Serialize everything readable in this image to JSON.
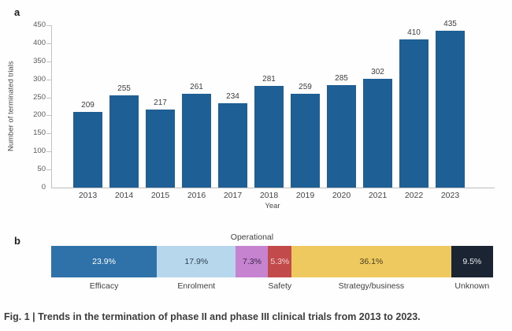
{
  "figure": {
    "caption": "Fig. 1 | Trends in the termination of phase II and phase III clinical trials from 2013 to 2023."
  },
  "panel_a": {
    "label": "a"
  },
  "panel_b": {
    "label": "b"
  },
  "colors": {
    "bar_blue": "#1e6096",
    "axis_gray": "#c2c2c2",
    "label_gray": "#3f3f3f"
  },
  "chart_data": [
    {
      "type": "bar",
      "panel": "a",
      "title": "",
      "xlabel": "Year",
      "ylabel": "Number of terminated trials",
      "categories": [
        "2013",
        "2014",
        "2015",
        "2016",
        "2017",
        "2018",
        "2019",
        "2020",
        "2021",
        "2022",
        "2023"
      ],
      "values": [
        209,
        255,
        217,
        261,
        234,
        281,
        259,
        285,
        302,
        410,
        435
      ],
      "ylim": [
        0,
        450
      ],
      "ytick_interval": 50,
      "grid": false,
      "legend": "none",
      "bar_color": "#1e6096",
      "value_labels": true
    },
    {
      "type": "bar",
      "subtype": "stacked-horizontal-100pct",
      "panel": "b",
      "unit": "%",
      "segments": [
        {
          "label": "Efficacy",
          "value": 23.9,
          "display": "23.9%",
          "color": "#2e72a9",
          "text_color": "#fdfdfd",
          "label_side": "below"
        },
        {
          "label": "Enrolment",
          "value": 17.9,
          "display": "17.9%",
          "color": "#b7d7ec",
          "text_color": "#30414f",
          "label_side": "below"
        },
        {
          "label": "Operational",
          "value": 7.3,
          "display": "7.3%",
          "color": "#c583d0",
          "text_color": "#3f2a49",
          "label_side": "above"
        },
        {
          "label": "Safety",
          "value": 5.3,
          "display": "5.3%",
          "color": "#c24a4a",
          "text_color": "#f2d4d6",
          "label_side": "below"
        },
        {
          "label": "Strategy/business",
          "value": 36.1,
          "display": "36.1%",
          "color": "#edc95f",
          "text_color": "#4a3d20",
          "label_side": "below"
        },
        {
          "label": "Unknown",
          "value": 9.5,
          "display": "9.5%",
          "color": "#1b2433",
          "text_color": "#e9ecf0",
          "label_side": "below"
        }
      ]
    }
  ]
}
